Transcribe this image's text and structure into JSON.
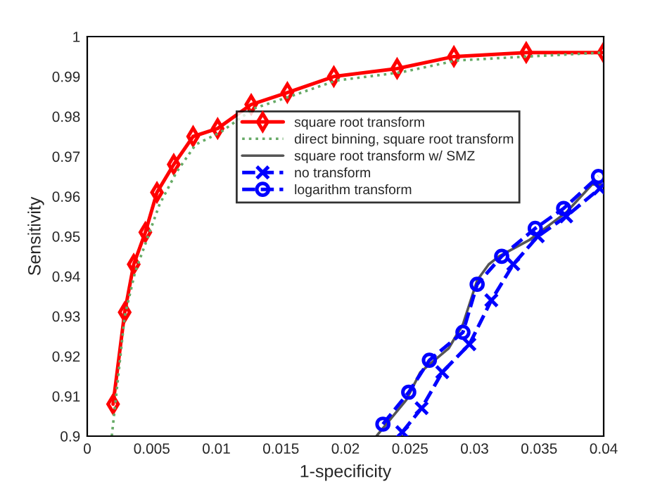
{
  "chart_data": {
    "type": "line",
    "xlabel": "1-specificity",
    "ylabel": "Sensitivity",
    "xlim": [
      0,
      0.04
    ],
    "ylim": [
      0.9,
      1
    ],
    "xticks": [
      0,
      0.005,
      0.01,
      0.015,
      0.02,
      0.025,
      0.03,
      0.035,
      0.04
    ],
    "yticks": [
      0.9,
      0.91,
      0.92,
      0.93,
      0.94,
      0.95,
      0.96,
      0.97,
      0.98,
      0.99,
      1
    ],
    "grid": false,
    "legend": "top right",
    "series": [
      {
        "name": "square root transform",
        "color": "#ff0000",
        "marker": "diamond",
        "line_style": "solid",
        "x": [
          0.002,
          0.0029,
          0.0036,
          0.0045,
          0.0054,
          0.0067,
          0.0082,
          0.0101,
          0.0127,
          0.0155,
          0.0191,
          0.024,
          0.0284,
          0.034,
          0.04
        ],
        "values": [
          0.908,
          0.931,
          0.943,
          0.951,
          0.961,
          0.968,
          0.975,
          0.977,
          0.983,
          0.986,
          0.99,
          0.992,
          0.995,
          0.996,
          0.996
        ]
      },
      {
        "name": "direct binning, square root transform",
        "color": "#66aa66",
        "marker": "none",
        "line_style": "dotted",
        "x": [
          0.0019,
          0.0029,
          0.0037,
          0.0046,
          0.0056,
          0.0069,
          0.0084,
          0.0103,
          0.0129,
          0.0157,
          0.0193,
          0.0242,
          0.0286,
          0.034,
          0.04
        ],
        "values": [
          0.9,
          0.93,
          0.941,
          0.949,
          0.958,
          0.966,
          0.973,
          0.976,
          0.982,
          0.985,
          0.989,
          0.991,
          0.994,
          0.995,
          0.996
        ]
      },
      {
        "name": "square root transform w/ SMZ",
        "color": "#555555",
        "marker": "none",
        "line_style": "solid",
        "x": [
          0.0224,
          0.0247,
          0.0258,
          0.028,
          0.0291,
          0.0302,
          0.0311,
          0.0319,
          0.0342,
          0.0371,
          0.0391,
          0.0398
        ],
        "values": [
          0.9,
          0.909,
          0.916,
          0.922,
          0.928,
          0.939,
          0.943,
          0.945,
          0.949,
          0.956,
          0.963,
          0.963
        ]
      },
      {
        "name": "no transform",
        "color": "#0000ff",
        "marker": "cross",
        "line_style": "dashed",
        "x": [
          0.0244,
          0.0259,
          0.0275,
          0.0296,
          0.0313,
          0.033,
          0.0349,
          0.0371,
          0.0397
        ],
        "values": [
          0.901,
          0.907,
          0.916,
          0.923,
          0.934,
          0.943,
          0.95,
          0.955,
          0.962
        ]
      },
      {
        "name": "logarithm transform",
        "color": "#0000ff",
        "marker": "circle",
        "line_style": "dashed",
        "x": [
          0.0229,
          0.0249,
          0.0265,
          0.0291,
          0.0302,
          0.0321,
          0.0347,
          0.0369,
          0.0396
        ],
        "values": [
          0.903,
          0.911,
          0.919,
          0.926,
          0.938,
          0.945,
          0.952,
          0.957,
          0.965
        ]
      }
    ]
  }
}
